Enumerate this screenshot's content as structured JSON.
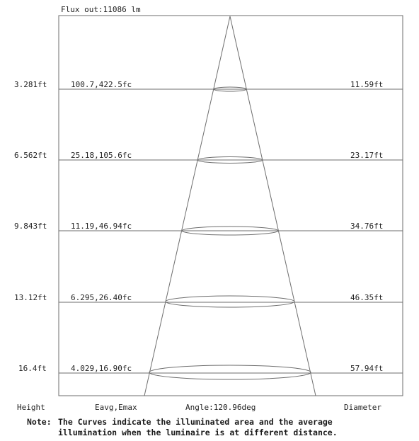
{
  "flux": "Flux out:11086 lm",
  "rows": [
    {
      "height": "3.281ft",
      "illuminance": "100.7,422.5fc",
      "diameter": "11.59ft"
    },
    {
      "height": "6.562ft",
      "illuminance": "25.18,105.6fc",
      "diameter": "23.17ft"
    },
    {
      "height": "9.843ft",
      "illuminance": "11.19,46.94fc",
      "diameter": "34.76ft"
    },
    {
      "height": "13.12ft",
      "illuminance": "6.295,26.40fc",
      "diameter": "46.35ft"
    },
    {
      "height": "16.4ft",
      "illuminance": "4.029,16.90fc",
      "diameter": "57.94ft"
    }
  ],
  "footer": {
    "height_label": "Height",
    "illuminance_label": "Eavg,Emax",
    "angle": "Angle:120.96deg",
    "diameter_label": "Diameter"
  },
  "note": {
    "label": "Note:",
    "line1": "The Curves indicate the illuminated area and the average",
    "line2": "illumination when the luminaire is at different distance."
  },
  "colors": {
    "line": "#6e6e6e",
    "text": "#222222"
  }
}
